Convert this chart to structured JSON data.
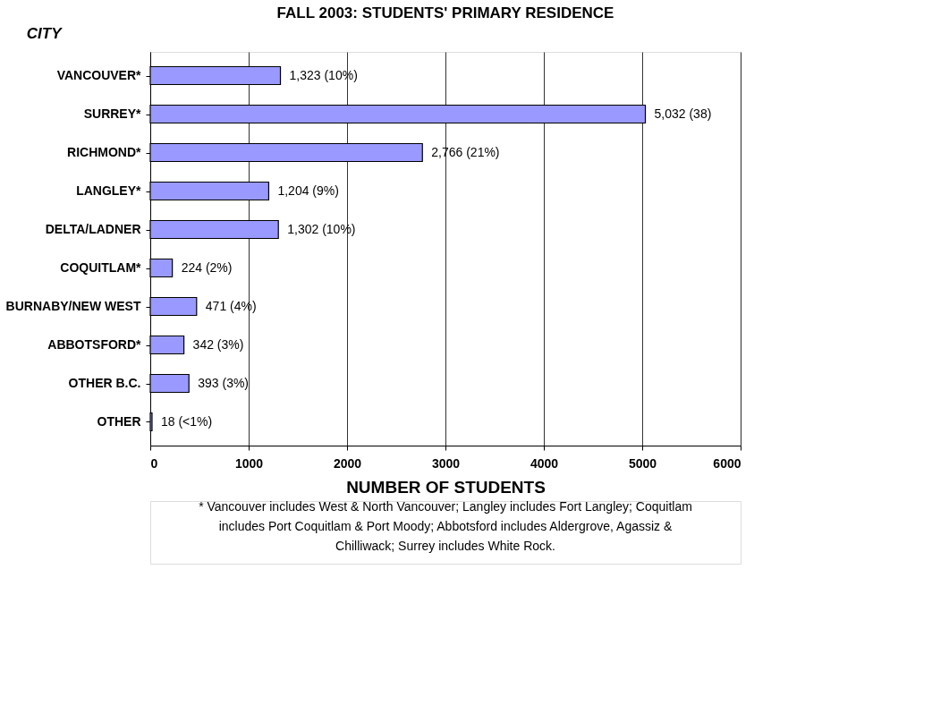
{
  "chart_data": {
    "type": "bar",
    "orientation": "horizontal",
    "title": "FALL 2003: STUDENTS' PRIMARY RESIDENCE",
    "ylabel": "CITY",
    "xlabel": "NUMBER OF STUDENTS",
    "categories": [
      "VANCOUVER*",
      "SURREY*",
      "RICHMOND*",
      "LANGLEY*",
      "DELTA/LADNER",
      "COQUITLAM*",
      "BURNABY/NEW WEST",
      "ABBOTSFORD*",
      "OTHER B.C.",
      "OTHER"
    ],
    "values": [
      1323,
      5032,
      2766,
      1204,
      1302,
      224,
      471,
      342,
      393,
      18
    ],
    "value_labels": [
      "1,323  (10%)",
      "5,032 (38)",
      "2,766 (21%)",
      "1,204   (9%)",
      "1,302  (10%)",
      "224 (2%)",
      "471 (4%)",
      "342  (3%)",
      "393 (3%)",
      "18 (<1%)"
    ],
    "color": "#9999ff",
    "xlim": [
      0,
      6000
    ],
    "xticks": [
      0,
      1000,
      2000,
      3000,
      4000,
      5000,
      6000
    ],
    "grid": "x",
    "annotations": [
      "* Vancouver includes West & North Vancouver; Langley includes Fort Langley; Coquitlam includes Port Coquitlam & Port Moody; Abbotsford includes Aldergrove, Agassiz & Chilliwack; Surrey includes White Rock."
    ]
  }
}
